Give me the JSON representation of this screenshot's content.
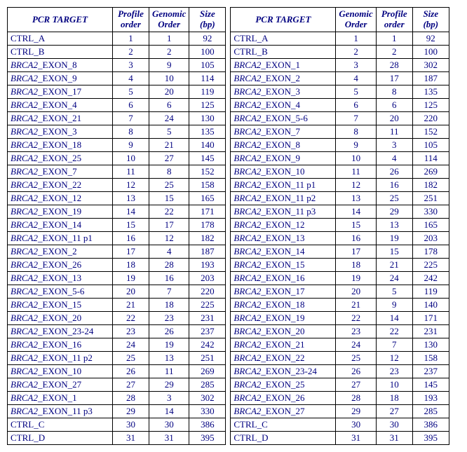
{
  "colors": {
    "text": "#000080",
    "border": "#000000",
    "background": "#ffffff"
  },
  "headers": {
    "target": "PCR TARGET",
    "profile": "Profile order",
    "genomic": "Genomic Order",
    "size": "Size (bp)"
  },
  "gene_name": "BRCA2",
  "left_table": {
    "col_order": [
      "target",
      "profile",
      "genomic",
      "size"
    ],
    "rows": [
      {
        "target": {
          "prefix": "",
          "rest": "CTRL_A"
        },
        "profile": 1,
        "genomic": 1,
        "size": 92
      },
      {
        "target": {
          "prefix": "",
          "rest": "CTRL_B"
        },
        "profile": 2,
        "genomic": 2,
        "size": 100
      },
      {
        "target": {
          "prefix": "BRCA2",
          "rest": "_EXON_8"
        },
        "profile": 3,
        "genomic": 9,
        "size": 105
      },
      {
        "target": {
          "prefix": "BRCA2",
          "rest": "_EXON_9"
        },
        "profile": 4,
        "genomic": 10,
        "size": 114
      },
      {
        "target": {
          "prefix": "BRCA2",
          "rest": "_EXON_17"
        },
        "profile": 5,
        "genomic": 20,
        "size": 119
      },
      {
        "target": {
          "prefix": "BRCA2",
          "rest": "_EXON_4"
        },
        "profile": 6,
        "genomic": 6,
        "size": 125
      },
      {
        "target": {
          "prefix": "BRCA2",
          "rest": "_EXON_21"
        },
        "profile": 7,
        "genomic": 24,
        "size": 130
      },
      {
        "target": {
          "prefix": "BRCA2",
          "rest": "_EXON_3"
        },
        "profile": 8,
        "genomic": 5,
        "size": 135
      },
      {
        "target": {
          "prefix": "BRCA2",
          "rest": "_EXON_18"
        },
        "profile": 9,
        "genomic": 21,
        "size": 140
      },
      {
        "target": {
          "prefix": "BRCA2",
          "rest": "_EXON_25"
        },
        "profile": 10,
        "genomic": 27,
        "size": 145
      },
      {
        "target": {
          "prefix": "BRCA2",
          "rest": "_EXON_7"
        },
        "profile": 11,
        "genomic": 8,
        "size": 152
      },
      {
        "target": {
          "prefix": "BRCA2",
          "rest": "_EXON_22"
        },
        "profile": 12,
        "genomic": 25,
        "size": 158
      },
      {
        "target": {
          "prefix": "BRCA2",
          "rest": "_EXON_12"
        },
        "profile": 13,
        "genomic": 15,
        "size": 165
      },
      {
        "target": {
          "prefix": "BRCA2",
          "rest": "_EXON_19"
        },
        "profile": 14,
        "genomic": 22,
        "size": 171
      },
      {
        "target": {
          "prefix": "BRCA2",
          "rest": "_EXON_14"
        },
        "profile": 15,
        "genomic": 17,
        "size": 178
      },
      {
        "target": {
          "prefix": "BRCA2",
          "rest": "_EXON_11 p1"
        },
        "profile": 16,
        "genomic": 12,
        "size": 182
      },
      {
        "target": {
          "prefix": "BRCA2",
          "rest": "_EXON_2"
        },
        "profile": 17,
        "genomic": 4,
        "size": 187
      },
      {
        "target": {
          "prefix": "BRCA2",
          "rest": "_EXON_26"
        },
        "profile": 18,
        "genomic": 28,
        "size": 193
      },
      {
        "target": {
          "prefix": "BRCA2",
          "rest": "_EXON_13"
        },
        "profile": 19,
        "genomic": 16,
        "size": 203
      },
      {
        "target": {
          "prefix": "BRCA2",
          "rest": "_EXON_5-6"
        },
        "profile": 20,
        "genomic": 7,
        "size": 220
      },
      {
        "target": {
          "prefix": "BRCA2",
          "rest": "_EXON_15"
        },
        "profile": 21,
        "genomic": 18,
        "size": 225
      },
      {
        "target": {
          "prefix": "BRCA2",
          "rest": "_EXON_20"
        },
        "profile": 22,
        "genomic": 23,
        "size": 231
      },
      {
        "target": {
          "prefix": "BRCA2",
          "rest": "_EXON_23-24"
        },
        "profile": 23,
        "genomic": 26,
        "size": 237
      },
      {
        "target": {
          "prefix": "BRCA2",
          "rest": "_EXON_16"
        },
        "profile": 24,
        "genomic": 19,
        "size": 242
      },
      {
        "target": {
          "prefix": "BRCA2",
          "rest": "_EXON_11 p2"
        },
        "profile": 25,
        "genomic": 13,
        "size": 251
      },
      {
        "target": {
          "prefix": "BRCA2",
          "rest": "_EXON_10"
        },
        "profile": 26,
        "genomic": 11,
        "size": 269
      },
      {
        "target": {
          "prefix": "BRCA2",
          "rest": "_EXON_27"
        },
        "profile": 27,
        "genomic": 29,
        "size": 285
      },
      {
        "target": {
          "prefix": "BRCA2",
          "rest": "_EXON_1"
        },
        "profile": 28,
        "genomic": 3,
        "size": 302
      },
      {
        "target": {
          "prefix": "BRCA2",
          "rest": "_EXON_11 p3"
        },
        "profile": 29,
        "genomic": 14,
        "size": 330
      },
      {
        "target": {
          "prefix": "",
          "rest": "CTRL_C"
        },
        "profile": 30,
        "genomic": 30,
        "size": 386
      },
      {
        "target": {
          "prefix": "",
          "rest": "CTRL_D"
        },
        "profile": 31,
        "genomic": 31,
        "size": 395
      }
    ]
  },
  "right_table": {
    "col_order": [
      "target",
      "genomic",
      "profile",
      "size"
    ],
    "rows": [
      {
        "target": {
          "prefix": "",
          "rest": "CTRL_A"
        },
        "genomic": 1,
        "profile": 1,
        "size": 92
      },
      {
        "target": {
          "prefix": "",
          "rest": "CTRL_B"
        },
        "genomic": 2,
        "profile": 2,
        "size": 100
      },
      {
        "target": {
          "prefix": "BRCA2",
          "rest": "_EXON_1"
        },
        "genomic": 3,
        "profile": 28,
        "size": 302
      },
      {
        "target": {
          "prefix": "BRCA2",
          "rest": "_EXON_2"
        },
        "genomic": 4,
        "profile": 17,
        "size": 187
      },
      {
        "target": {
          "prefix": "BRCA2",
          "rest": "_EXON_3"
        },
        "genomic": 5,
        "profile": 8,
        "size": 135
      },
      {
        "target": {
          "prefix": "BRCA2",
          "rest": "_EXON_4"
        },
        "genomic": 6,
        "profile": 6,
        "size": 125
      },
      {
        "target": {
          "prefix": "BRCA2",
          "rest": "_EXON_5-6"
        },
        "genomic": 7,
        "profile": 20,
        "size": 220
      },
      {
        "target": {
          "prefix": "BRCA2",
          "rest": "_EXON_7"
        },
        "genomic": 8,
        "profile": 11,
        "size": 152
      },
      {
        "target": {
          "prefix": "BRCA2",
          "rest": "_EXON_8"
        },
        "genomic": 9,
        "profile": 3,
        "size": 105
      },
      {
        "target": {
          "prefix": "BRCA2",
          "rest": "_EXON_9"
        },
        "genomic": 10,
        "profile": 4,
        "size": 114
      },
      {
        "target": {
          "prefix": "BRCA2",
          "rest": "_EXON_10"
        },
        "genomic": 11,
        "profile": 26,
        "size": 269
      },
      {
        "target": {
          "prefix": "BRCA2",
          "rest": "_EXON_11 p1"
        },
        "genomic": 12,
        "profile": 16,
        "size": 182
      },
      {
        "target": {
          "prefix": "BRCA2",
          "rest": "_EXON_11 p2"
        },
        "genomic": 13,
        "profile": 25,
        "size": 251
      },
      {
        "target": {
          "prefix": "BRCA2",
          "rest": "_EXON_11 p3"
        },
        "genomic": 14,
        "profile": 29,
        "size": 330
      },
      {
        "target": {
          "prefix": "BRCA2",
          "rest": "_EXON_12"
        },
        "genomic": 15,
        "profile": 13,
        "size": 165
      },
      {
        "target": {
          "prefix": "BRCA2",
          "rest": "_EXON_13"
        },
        "genomic": 16,
        "profile": 19,
        "size": 203
      },
      {
        "target": {
          "prefix": "BRCA2",
          "rest": "_EXON_14"
        },
        "genomic": 17,
        "profile": 15,
        "size": 178
      },
      {
        "target": {
          "prefix": "BRCA2",
          "rest": "_EXON_15"
        },
        "genomic": 18,
        "profile": 21,
        "size": 225
      },
      {
        "target": {
          "prefix": "BRCA2",
          "rest": "_EXON_16"
        },
        "genomic": 19,
        "profile": 24,
        "size": 242
      },
      {
        "target": {
          "prefix": "BRCA2",
          "rest": "_EXON_17"
        },
        "genomic": 20,
        "profile": 5,
        "size": 119
      },
      {
        "target": {
          "prefix": "BRCA2",
          "rest": "_EXON_18"
        },
        "genomic": 21,
        "profile": 9,
        "size": 140
      },
      {
        "target": {
          "prefix": "BRCA2",
          "rest": "_EXON_19"
        },
        "genomic": 22,
        "profile": 14,
        "size": 171
      },
      {
        "target": {
          "prefix": "BRCA2",
          "rest": "_EXON_20"
        },
        "genomic": 23,
        "profile": 22,
        "size": 231
      },
      {
        "target": {
          "prefix": "BRCA2",
          "rest": "_EXON_21"
        },
        "genomic": 24,
        "profile": 7,
        "size": 130
      },
      {
        "target": {
          "prefix": "BRCA2",
          "rest": "_EXON_22"
        },
        "genomic": 25,
        "profile": 12,
        "size": 158
      },
      {
        "target": {
          "prefix": "BRCA2",
          "rest": "_EXON_23-24"
        },
        "genomic": 26,
        "profile": 23,
        "size": 237
      },
      {
        "target": {
          "prefix": "BRCA2",
          "rest": "_EXON_25"
        },
        "genomic": 27,
        "profile": 10,
        "size": 145
      },
      {
        "target": {
          "prefix": "BRCA2",
          "rest": "_EXON_26"
        },
        "genomic": 28,
        "profile": 18,
        "size": 193
      },
      {
        "target": {
          "prefix": "BRCA2",
          "rest": "_EXON_27"
        },
        "genomic": 29,
        "profile": 27,
        "size": 285
      },
      {
        "target": {
          "prefix": "",
          "rest": "CTRL_C"
        },
        "genomic": 30,
        "profile": 30,
        "size": 386
      },
      {
        "target": {
          "prefix": "",
          "rest": "CTRL_D"
        },
        "genomic": 31,
        "profile": 31,
        "size": 395
      }
    ]
  }
}
